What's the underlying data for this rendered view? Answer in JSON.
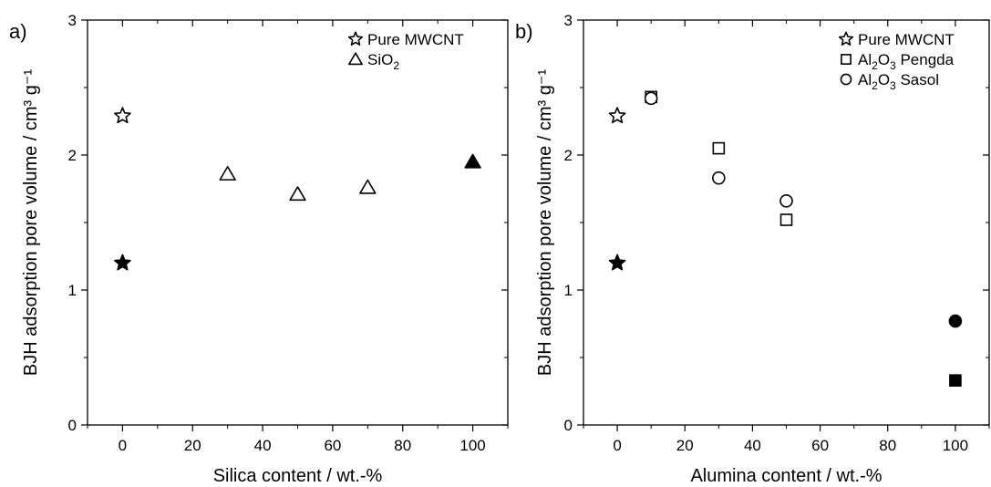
{
  "chart_data": [
    {
      "type": "scatter",
      "panel_label": "a)",
      "xlabel": "Silica content / wt.-%",
      "ylabel": "BJH adsorption pore volume / cm³ g⁻¹",
      "xlim": [
        -10,
        110
      ],
      "ylim": [
        0,
        3
      ],
      "xticks": [
        "0",
        "20",
        "40",
        "60",
        "80",
        "100"
      ],
      "xtick_values": [
        0,
        20,
        40,
        60,
        80,
        100
      ],
      "yticks": [
        "0",
        "1",
        "2",
        "3"
      ],
      "ytick_values": [
        0,
        1,
        2,
        3
      ],
      "legend_position": "top-right",
      "series": [
        {
          "name": "Pure MWCNT",
          "marker": "star",
          "points": [
            {
              "x": 0,
              "y": 2.29,
              "filled": false
            },
            {
              "x": 0,
              "y": 1.2,
              "filled": true
            }
          ]
        },
        {
          "name": "SiO2",
          "marker": "triangle",
          "points": [
            {
              "x": 30,
              "y": 1.86,
              "filled": false
            },
            {
              "x": 50,
              "y": 1.71,
              "filled": false
            },
            {
              "x": 70,
              "y": 1.76,
              "filled": false
            },
            {
              "x": 100,
              "y": 1.95,
              "filled": true
            }
          ]
        }
      ],
      "legend": [
        {
          "marker": "star",
          "text": "Pure MWCNT"
        },
        {
          "marker": "triangle",
          "text": "SiO",
          "sub": "2",
          "after": ""
        }
      ]
    },
    {
      "type": "scatter",
      "panel_label": "b)",
      "xlabel": "Alumina content / wt.-%",
      "ylabel": "BJH adsorption pore volume / cm³ g⁻¹",
      "xlim": [
        -10,
        110
      ],
      "ylim": [
        0,
        3
      ],
      "xticks": [
        "0",
        "20",
        "40",
        "60",
        "80",
        "100"
      ],
      "xtick_values": [
        0,
        20,
        40,
        60,
        80,
        100
      ],
      "yticks": [
        "0",
        "1",
        "2",
        "3"
      ],
      "ytick_values": [
        0,
        1,
        2,
        3
      ],
      "legend_position": "top-right",
      "series": [
        {
          "name": "Pure MWCNT",
          "marker": "star",
          "points": [
            {
              "x": 0,
              "y": 2.29,
              "filled": false
            },
            {
              "x": 0,
              "y": 1.2,
              "filled": true
            }
          ]
        },
        {
          "name": "Al2O3 Pengda",
          "marker": "square",
          "points": [
            {
              "x": 10,
              "y": 2.43,
              "filled": false
            },
            {
              "x": 30,
              "y": 2.05,
              "filled": false
            },
            {
              "x": 50,
              "y": 1.52,
              "filled": false
            },
            {
              "x": 100,
              "y": 0.33,
              "filled": true
            }
          ]
        },
        {
          "name": "Al2O3 Sasol",
          "marker": "circle",
          "points": [
            {
              "x": 10,
              "y": 2.42,
              "filled": false
            },
            {
              "x": 30,
              "y": 1.83,
              "filled": false
            },
            {
              "x": 50,
              "y": 1.66,
              "filled": false
            },
            {
              "x": 100,
              "y": 0.77,
              "filled": true
            }
          ]
        }
      ],
      "legend": [
        {
          "marker": "star",
          "text": "Pure MWCNT"
        },
        {
          "marker": "square",
          "text": "Al",
          "sub": "2",
          "mid": "O",
          "sub2": "3",
          "after": " Pengda"
        },
        {
          "marker": "circle",
          "text": "Al",
          "sub": "2",
          "mid": "O",
          "sub2": "3",
          "after": " Sasol"
        }
      ]
    }
  ]
}
